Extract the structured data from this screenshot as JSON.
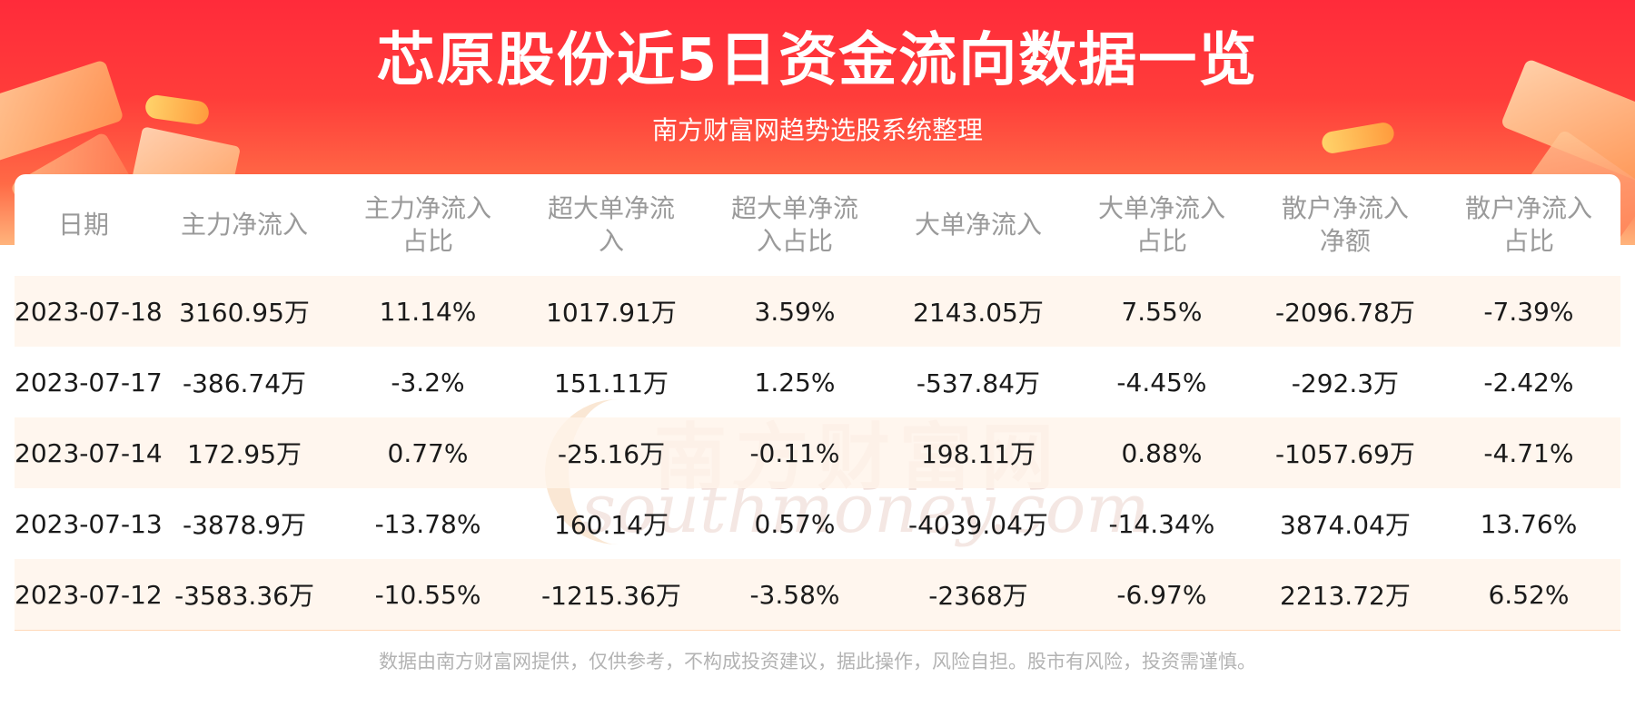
{
  "header": {
    "title": "芯原股份近5日资金流向数据一览",
    "subtitle": "南方财富网趋势选股系统整理"
  },
  "watermark": {
    "text_cn": "南方财富网",
    "text_en": "southmoney.com"
  },
  "table": {
    "columns": [
      [
        "日期"
      ],
      [
        "主力净流入"
      ],
      [
        "主力净流入",
        "占比"
      ],
      [
        "超大单净流",
        "入"
      ],
      [
        "超大单净流",
        "入占比"
      ],
      [
        "大单净流入"
      ],
      [
        "大单净流入",
        "占比"
      ],
      [
        "散户净流入",
        "净额"
      ],
      [
        "散户净流入",
        "占比"
      ]
    ],
    "rows": [
      [
        "2023-07-18",
        "3160.95万",
        "11.14%",
        "1017.91万",
        "3.59%",
        "2143.05万",
        "7.55%",
        "-2096.78万",
        "-7.39%"
      ],
      [
        "2023-07-17",
        "-386.74万",
        "-3.2%",
        "151.11万",
        "1.25%",
        "-537.84万",
        "-4.45%",
        "-292.3万",
        "-2.42%"
      ],
      [
        "2023-07-14",
        "172.95万",
        "0.77%",
        "-25.16万",
        "-0.11%",
        "198.11万",
        "0.88%",
        "-1057.69万",
        "-4.71%"
      ],
      [
        "2023-07-13",
        "-3878.9万",
        "-13.78%",
        "160.14万",
        "0.57%",
        "-4039.04万",
        "-14.34%",
        "3874.04万",
        "13.76%"
      ],
      [
        "2023-07-12",
        "-3583.36万",
        "-10.55%",
        "-1215.36万",
        "-3.58%",
        "-2368万",
        "-6.97%",
        "2213.72万",
        "6.52%"
      ]
    ]
  },
  "footer": {
    "disclaimer": "数据由南方财富网提供，仅供参考，不构成投资建议，据此操作，风险自担。股市有风险，投资需谨慎。"
  },
  "colors": {
    "banner_red": "#ff2b3a",
    "row_stripe": "#fff4ea",
    "header_text": "#9a9a9a",
    "body_text": "#1a1a1a"
  }
}
